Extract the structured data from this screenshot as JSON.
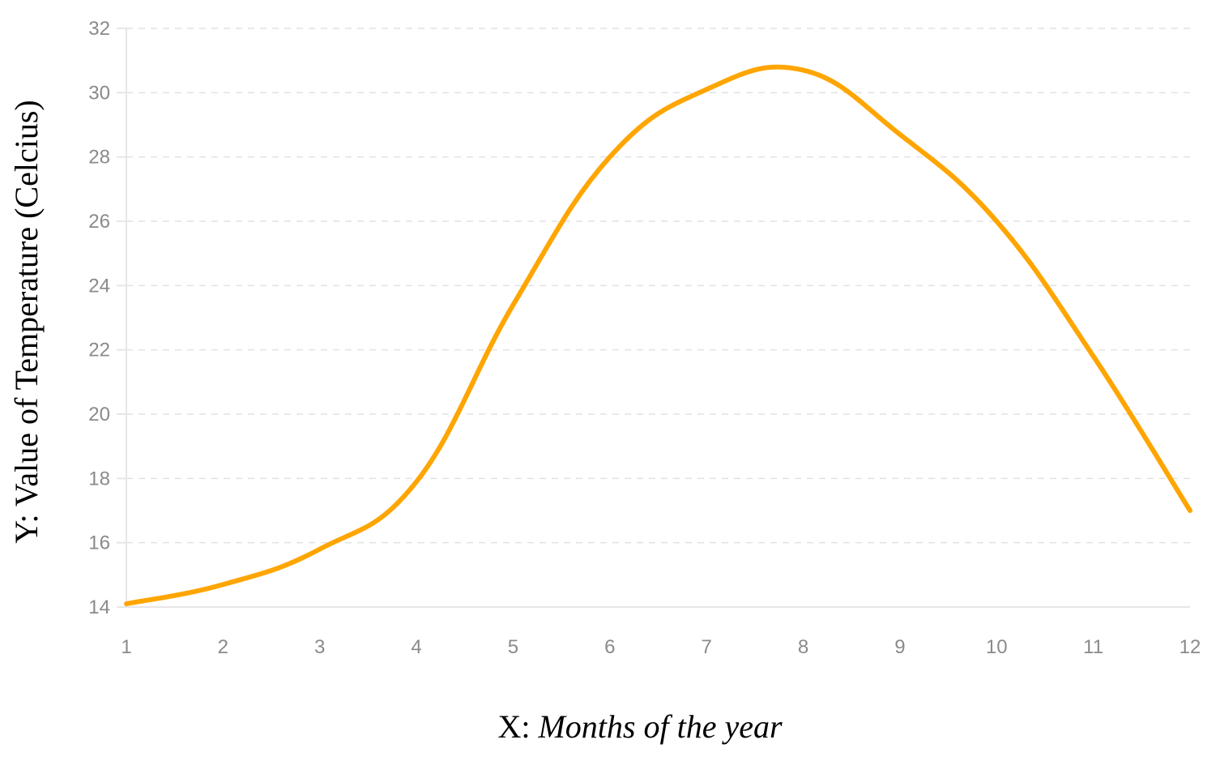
{
  "chart_data": {
    "type": "line",
    "title": "",
    "xlabel_prefix": "X: ",
    "xlabel_text": "Months of the year",
    "ylabel": "Y: Value of Temperature (Celcius)",
    "x": [
      1,
      2,
      3,
      4,
      5,
      6,
      7,
      8,
      9,
      10,
      11,
      12
    ],
    "x_ticks": [
      "1",
      "2",
      "3",
      "4",
      "5",
      "6",
      "7",
      "8",
      "9",
      "10",
      "11",
      "12"
    ],
    "y_ticks": [
      "14",
      "16",
      "18",
      "20",
      "22",
      "24",
      "26",
      "28",
      "30",
      "32"
    ],
    "xlim": [
      1,
      12
    ],
    "ylim": [
      14,
      32
    ],
    "grid": true,
    "series": [
      {
        "values": [
          14.1,
          14.7,
          15.8,
          17.9,
          23.4,
          28.0,
          30.1,
          30.7,
          28.7,
          26.0,
          21.8,
          17.0
        ],
        "color": "#FFA500"
      }
    ]
  }
}
